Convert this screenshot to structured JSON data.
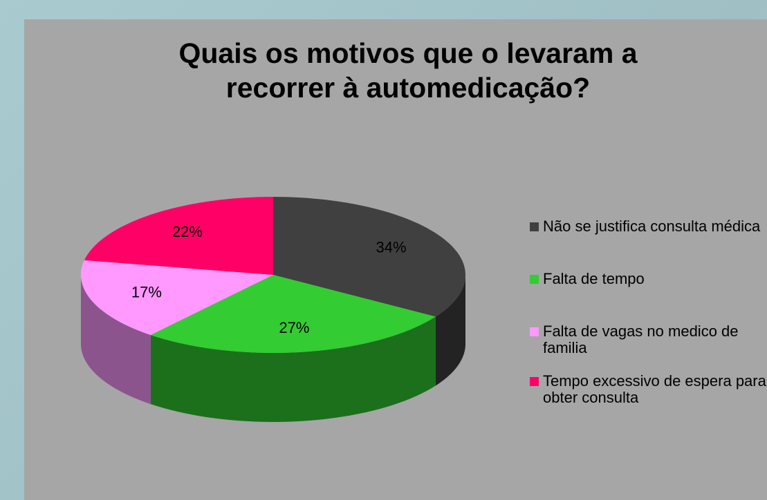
{
  "chart_data": {
    "type": "pie",
    "title": "Quais os motivos que o levaram a recorrer à automedicação?",
    "series": [
      {
        "name": "Não se justifica consulta médica",
        "color": "#404040",
        "values": [
          34
        ]
      },
      {
        "name": "Falta de tempo",
        "color": "#33cc33",
        "values": [
          27
        ]
      },
      {
        "name": "Falta de vagas no medico de familia",
        "color": "#ff99ff",
        "values": [
          17
        ]
      },
      {
        "name": "Tempo excessivo de espera para obter consulta",
        "color": "#ff0066",
        "values": [
          22
        ]
      }
    ],
    "value_labels": [
      "34%",
      "27%",
      "17%",
      "22%"
    ],
    "legend": "right"
  }
}
